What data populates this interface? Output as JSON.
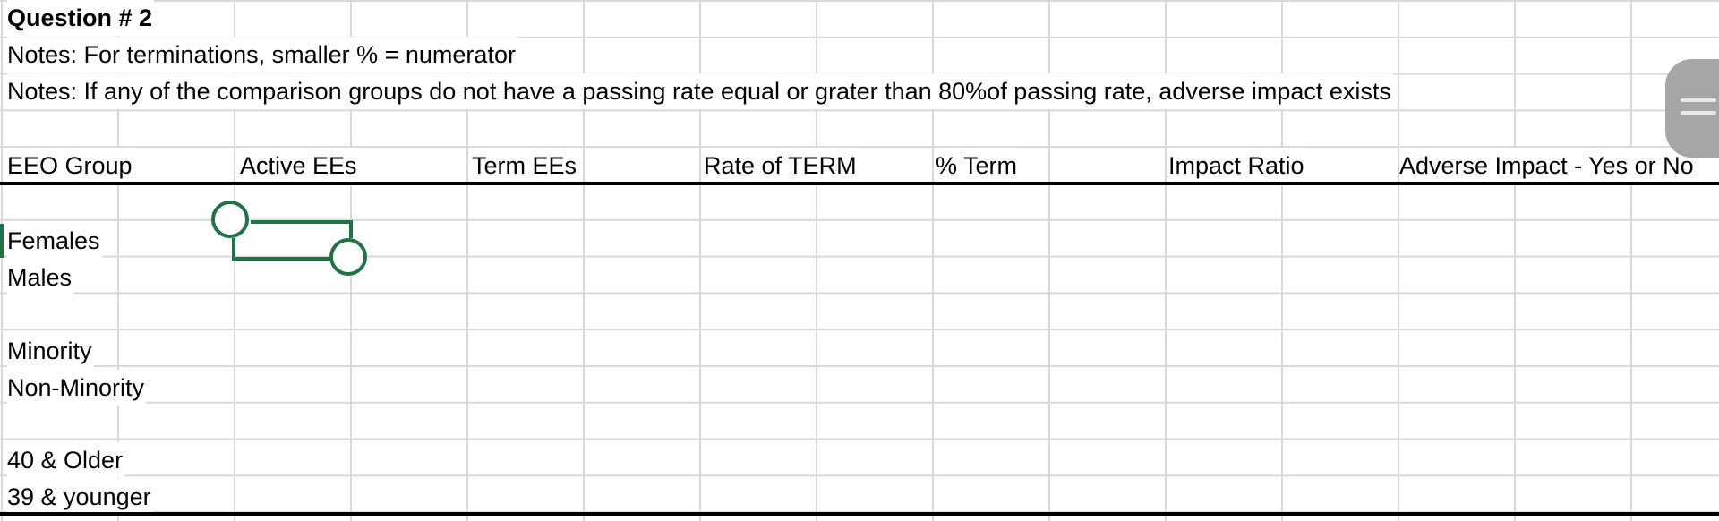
{
  "sheet": {
    "title_row": "Question # 2",
    "note1": "Notes:  For terminations, smaller % = numerator",
    "note2": "Notes:  If any of the comparison groups do not have a passing rate equal or grater than 80%of passing rate, adverse impact exists",
    "headers": {
      "col_a": "EEO Group",
      "col_b": "Active EEs",
      "col_c": "Term EEs",
      "col_d": "Rate of TERM",
      "col_e": "% Term",
      "col_f": "Impact Ratio",
      "col_g": "Adverse Impact - Yes or No"
    },
    "groups": [
      "Females",
      "Males",
      "Minority",
      "Non-Minority",
      "40 & Older",
      "39 & younger"
    ]
  },
  "colors": {
    "selection": "#217346",
    "gridline": "#d9d9d9",
    "scroll_handle": "#a6a6a6"
  },
  "icons": {
    "scroll_handle": "drag-handle-icon"
  }
}
